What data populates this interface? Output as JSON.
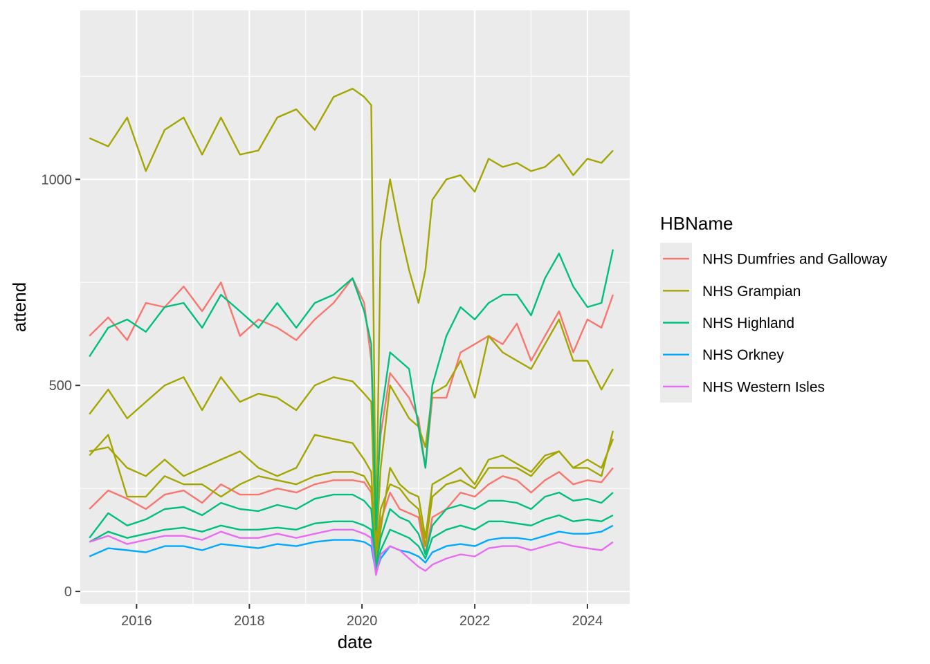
{
  "chart_data": {
    "type": "line",
    "xlabel": "date",
    "ylabel": "attend",
    "xlim": [
      "2015-01-01",
      "2024-10-01"
    ],
    "ylim": [
      -30,
      1410
    ],
    "x_ticks": [
      {
        "value": "2016-01-01",
        "label": "2016"
      },
      {
        "value": "2018-01-01",
        "label": "2018"
      },
      {
        "value": "2020-01-01",
        "label": "2020"
      },
      {
        "value": "2022-01-01",
        "label": "2022"
      },
      {
        "value": "2024-01-01",
        "label": "2024"
      }
    ],
    "y_ticks": [
      {
        "value": 0,
        "label": "0"
      },
      {
        "value": 500,
        "label": "500"
      },
      {
        "value": 1000,
        "label": "1000"
      }
    ],
    "grid": true,
    "legend": {
      "title": "HBName",
      "placement": "right"
    },
    "dates": [
      "2015-03-01",
      "2015-07-01",
      "2015-11-01",
      "2016-03-01",
      "2016-07-01",
      "2016-11-01",
      "2017-03-01",
      "2017-07-01",
      "2017-11-01",
      "2018-03-01",
      "2018-07-01",
      "2018-11-01",
      "2019-03-01",
      "2019-07-01",
      "2019-11-01",
      "2020-01-15",
      "2020-03-01",
      "2020-04-01",
      "2020-05-01",
      "2020-07-01",
      "2020-09-01",
      "2020-11-01",
      "2021-01-01",
      "2021-02-15",
      "2021-04-01",
      "2021-07-01",
      "2021-10-01",
      "2022-01-01",
      "2022-04-01",
      "2022-07-01",
      "2022-10-01",
      "2023-01-01",
      "2023-04-01",
      "2023-07-01",
      "2023-10-01",
      "2024-01-01",
      "2024-04-01",
      "2024-06-15"
    ],
    "series": [
      {
        "name": "NHS Dumfries and Galloway",
        "color": "#F8766D",
        "lines": [
          [
            620,
            665,
            610,
            700,
            690,
            740,
            680,
            750,
            620,
            660,
            640,
            610,
            660,
            700,
            760,
            700,
            560,
            220,
            380,
            530,
            500,
            470,
            420,
            300,
            470,
            470,
            580,
            600,
            620,
            600,
            650,
            560,
            620,
            680,
            580,
            660,
            640,
            720
          ],
          [
            200,
            245,
            225,
            200,
            235,
            245,
            215,
            260,
            235,
            235,
            250,
            240,
            260,
            270,
            270,
            265,
            240,
            85,
            170,
            240,
            200,
            190,
            180,
            90,
            180,
            200,
            240,
            230,
            260,
            280,
            270,
            240,
            270,
            290,
            260,
            270,
            265,
            300
          ]
        ]
      },
      {
        "name": "NHS Grampian",
        "color": "#A3A500",
        "lines": [
          [
            1100,
            1080,
            1150,
            1020,
            1120,
            1150,
            1060,
            1150,
            1060,
            1070,
            1150,
            1170,
            1120,
            1200,
            1220,
            1200,
            1180,
            120,
            850,
            1000,
            880,
            780,
            700,
            780,
            950,
            1000,
            1010,
            970,
            1050,
            1030,
            1040,
            1020,
            1030,
            1060,
            1010,
            1050,
            1040,
            1070
          ],
          [
            430,
            490,
            420,
            460,
            500,
            520,
            440,
            520,
            460,
            480,
            470,
            440,
            500,
            520,
            510,
            480,
            460,
            95,
            300,
            500,
            460,
            420,
            400,
            350,
            480,
            500,
            560,
            470,
            620,
            580,
            560,
            540,
            600,
            660,
            560,
            560,
            490,
            540
          ],
          [
            340,
            350,
            300,
            280,
            320,
            280,
            300,
            320,
            340,
            300,
            280,
            300,
            380,
            370,
            360,
            320,
            290,
            60,
            150,
            300,
            260,
            240,
            230,
            130,
            260,
            280,
            300,
            260,
            320,
            330,
            310,
            290,
            330,
            340,
            300,
            320,
            300,
            370
          ],
          [
            330,
            380,
            230,
            230,
            280,
            260,
            260,
            230,
            260,
            280,
            270,
            260,
            280,
            290,
            290,
            280,
            250,
            70,
            200,
            260,
            250,
            220,
            200,
            110,
            230,
            260,
            270,
            250,
            300,
            300,
            300,
            280,
            320,
            340,
            300,
            300,
            280,
            390
          ]
        ]
      },
      {
        "name": "NHS Highland",
        "color": "#00BF7D",
        "lines": [
          [
            570,
            640,
            660,
            630,
            690,
            700,
            640,
            720,
            680,
            640,
            700,
            640,
            700,
            720,
            760,
            680,
            600,
            150,
            420,
            580,
            560,
            540,
            400,
            300,
            500,
            620,
            690,
            660,
            700,
            720,
            720,
            670,
            760,
            820,
            740,
            690,
            700,
            830
          ],
          [
            130,
            190,
            160,
            175,
            200,
            205,
            185,
            215,
            200,
            195,
            210,
            200,
            225,
            235,
            235,
            220,
            200,
            60,
            130,
            200,
            180,
            170,
            140,
            90,
            160,
            200,
            210,
            200,
            220,
            220,
            215,
            200,
            230,
            240,
            220,
            225,
            215,
            240
          ],
          [
            120,
            145,
            130,
            140,
            150,
            155,
            145,
            160,
            150,
            150,
            155,
            150,
            165,
            170,
            170,
            160,
            150,
            50,
            100,
            150,
            140,
            130,
            110,
            80,
            130,
            150,
            160,
            150,
            170,
            170,
            165,
            160,
            175,
            185,
            170,
            175,
            170,
            185
          ]
        ]
      },
      {
        "name": "NHS Orkney",
        "color": "#00A9FF",
        "lines": [
          [
            85,
            105,
            100,
            95,
            110,
            110,
            100,
            115,
            110,
            105,
            115,
            110,
            120,
            125,
            125,
            120,
            110,
            45,
            80,
            110,
            100,
            95,
            85,
            70,
            95,
            110,
            115,
            110,
            125,
            130,
            130,
            125,
            135,
            145,
            140,
            140,
            145,
            160
          ]
        ]
      },
      {
        "name": "NHS Western Isles",
        "color": "#E76BF3",
        "lines": [
          [
            120,
            135,
            115,
            125,
            135,
            135,
            125,
            145,
            130,
            130,
            140,
            130,
            140,
            150,
            150,
            140,
            130,
            40,
            90,
            110,
            100,
            80,
            60,
            50,
            65,
            80,
            90,
            85,
            105,
            110,
            110,
            100,
            110,
            120,
            110,
            105,
            100,
            120
          ]
        ]
      }
    ]
  }
}
